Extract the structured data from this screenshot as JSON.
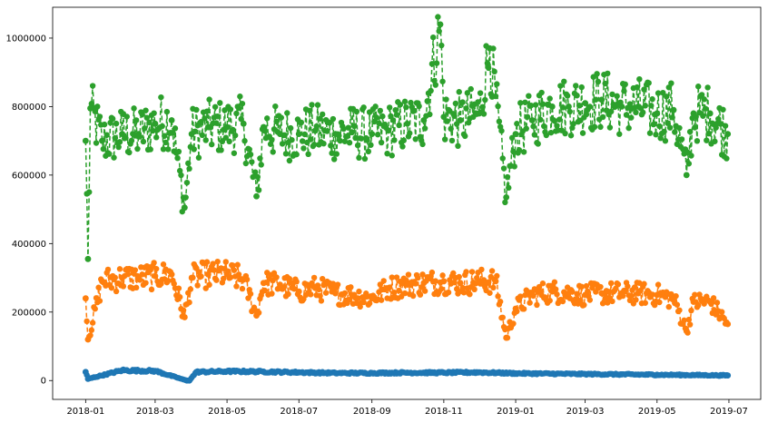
{
  "chart_data": {
    "type": "line",
    "title": "",
    "xlabel": "",
    "ylabel": "",
    "x_range": [
      "2017-12-04",
      "2019-07-28"
    ],
    "ylim": [
      -55000,
      1090000
    ],
    "x_ticks": [
      {
        "date": "2018-01-01",
        "label": "2018-01"
      },
      {
        "date": "2018-03-01",
        "label": "2018-03"
      },
      {
        "date": "2018-05-01",
        "label": "2018-05"
      },
      {
        "date": "2018-07-01",
        "label": "2018-07"
      },
      {
        "date": "2018-09-01",
        "label": "2018-09"
      },
      {
        "date": "2018-11-01",
        "label": "2018-11"
      },
      {
        "date": "2019-01-01",
        "label": "2019-01"
      },
      {
        "date": "2019-03-01",
        "label": "2019-03"
      },
      {
        "date": "2019-05-01",
        "label": "2019-05"
      },
      {
        "date": "2019-07-01",
        "label": "2019-07"
      }
    ],
    "y_ticks": [
      {
        "value": 0,
        "label": "0"
      },
      {
        "value": 200000,
        "label": "200000"
      },
      {
        "value": 400000,
        "label": "400000"
      },
      {
        "value": 600000,
        "label": "600000"
      },
      {
        "value": 800000,
        "label": "800000"
      },
      {
        "value": 1000000,
        "label": "1000000"
      }
    ],
    "grid": false,
    "legend": "none",
    "series": [
      {
        "color": "#2ca02c",
        "line_style": "dashed",
        "marker": "circle",
        "x": [
          "2018-01-01",
          "2018-01-03",
          "2018-01-05",
          "2018-01-15",
          "2018-02-01",
          "2018-02-15",
          "2018-03-01",
          "2018-03-15",
          "2018-03-26",
          "2018-04-01",
          "2018-04-15",
          "2018-05-01",
          "2018-05-15",
          "2018-05-26",
          "2018-06-01",
          "2018-06-15",
          "2018-07-01",
          "2018-07-15",
          "2018-08-01",
          "2018-08-15",
          "2018-09-01",
          "2018-09-15",
          "2018-10-01",
          "2018-10-15",
          "2018-10-29",
          "2018-11-01",
          "2018-11-15",
          "2018-12-01",
          "2018-12-10",
          "2018-12-24",
          "2019-01-01",
          "2019-01-15",
          "2019-02-01",
          "2019-02-15",
          "2019-03-01",
          "2019-03-15",
          "2019-04-01",
          "2019-04-15",
          "2019-05-01",
          "2019-05-15",
          "2019-05-26",
          "2019-06-01",
          "2019-06-15",
          "2019-06-30"
        ],
        "y": [
          700000,
          355000,
          795000,
          700000,
          720000,
          720000,
          750000,
          760000,
          505000,
          720000,
          740000,
          740000,
          750000,
          538000,
          740000,
          720000,
          720000,
          730000,
          720000,
          725000,
          720000,
          730000,
          750000,
          760000,
          1040000,
          770000,
          760000,
          780000,
          970000,
          535000,
          720000,
          760000,
          800000,
          800000,
          810000,
          820000,
          800000,
          800000,
          780000,
          790000,
          600000,
          780000,
          780000,
          720000
        ]
      },
      {
        "color": "#ff7f0e",
        "line_style": "dashed",
        "marker": "circle",
        "x": [
          "2018-01-01",
          "2018-01-03",
          "2018-01-15",
          "2018-02-01",
          "2018-02-15",
          "2018-03-01",
          "2018-03-15",
          "2018-03-26",
          "2018-04-01",
          "2018-04-15",
          "2018-05-01",
          "2018-05-15",
          "2018-05-26",
          "2018-06-01",
          "2018-06-15",
          "2018-07-01",
          "2018-07-15",
          "2018-08-01",
          "2018-08-15",
          "2018-09-01",
          "2018-09-15",
          "2018-10-01",
          "2018-10-15",
          "2018-11-01",
          "2018-11-15",
          "2018-12-01",
          "2018-12-15",
          "2018-12-24",
          "2019-01-01",
          "2019-01-15",
          "2019-02-01",
          "2019-02-15",
          "2019-03-01",
          "2019-03-15",
          "2019-04-01",
          "2019-04-15",
          "2019-05-01",
          "2019-05-15",
          "2019-05-26",
          "2019-06-01",
          "2019-06-15",
          "2019-06-30"
        ],
        "y": [
          240000,
          120000,
          290000,
          300000,
          300000,
          305000,
          310000,
          185000,
          300000,
          310000,
          310000,
          295000,
          190000,
          285000,
          280000,
          260000,
          270000,
          255000,
          250000,
          240000,
          270000,
          280000,
          285000,
          290000,
          285000,
          290000,
          290000,
          125000,
          210000,
          250000,
          260000,
          255000,
          250000,
          255000,
          255000,
          255000,
          250000,
          240000,
          145000,
          230000,
          230000,
          165000
        ]
      },
      {
        "color": "#1f77b4",
        "line_style": "dashed",
        "marker": "circle",
        "x": [
          "2018-01-01",
          "2018-01-03",
          "2018-02-01",
          "2018-03-01",
          "2018-03-28",
          "2018-03-30",
          "2018-04-05",
          "2018-05-01",
          "2018-06-01",
          "2018-07-01",
          "2018-08-01",
          "2018-09-01",
          "2018-10-01",
          "2018-11-01",
          "2018-12-01",
          "2019-01-01",
          "2019-02-01",
          "2019-03-01",
          "2019-04-01",
          "2019-05-01",
          "2019-06-01",
          "2019-06-30"
        ],
        "y": [
          25000,
          5000,
          30000,
          28000,
          0,
          0,
          25000,
          27000,
          26000,
          24000,
          22000,
          22000,
          23000,
          23000,
          24000,
          21000,
          20000,
          19000,
          18000,
          17000,
          16000,
          15000
        ]
      }
    ]
  }
}
